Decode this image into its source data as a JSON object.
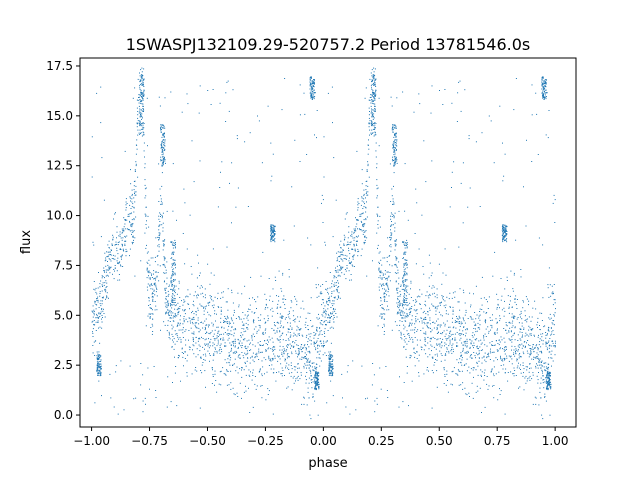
{
  "chart_data": {
    "type": "scatter",
    "title": "1SWASPJ132109.29-520757.2 Period 13781546.0s",
    "xlabel": "phase",
    "ylabel": "flux",
    "xlim": [
      -1.05,
      1.09
    ],
    "ylim": [
      -0.6,
      17.9
    ],
    "xticks": [
      -1.0,
      -0.75,
      -0.5,
      -0.25,
      0.0,
      0.25,
      0.5,
      0.75,
      1.0
    ],
    "xtick_labels": [
      "−1.00",
      "−0.75",
      "−0.50",
      "−0.25",
      "0.00",
      "0.25",
      "0.50",
      "0.75",
      "1.00"
    ],
    "yticks": [
      0.0,
      2.5,
      5.0,
      7.5,
      10.0,
      12.5,
      15.0,
      17.5
    ],
    "ytick_labels": [
      "0.0",
      "2.5",
      "5.0",
      "7.5",
      "10.0",
      "12.5",
      "15.0",
      "17.5"
    ],
    "grid": false,
    "marker_color": "#1f77b4",
    "series": [
      {
        "name": "",
        "profile": [
          [
            0.0,
            4.8
          ],
          [
            0.02,
            5.0
          ],
          [
            0.04,
            5.5
          ],
          [
            0.06,
            7.0
          ],
          [
            0.08,
            8.0
          ],
          [
            0.1,
            8.5
          ],
          [
            0.12,
            8.2
          ],
          [
            0.14,
            9.0
          ],
          [
            0.16,
            9.5
          ],
          [
            0.18,
            9.8
          ],
          [
            0.2,
            15.5
          ],
          [
            0.22,
            16.0
          ],
          [
            0.24,
            6.5
          ],
          [
            0.26,
            6.0
          ],
          [
            0.28,
            7.0
          ],
          [
            0.3,
            10.5
          ],
          [
            0.32,
            6.0
          ],
          [
            0.34,
            5.0
          ],
          [
            0.36,
            4.8
          ],
          [
            0.4,
            4.6
          ],
          [
            0.45,
            4.4
          ],
          [
            0.5,
            4.2
          ],
          [
            0.55,
            4.0
          ],
          [
            0.6,
            3.8
          ],
          [
            0.65,
            3.6
          ],
          [
            0.7,
            3.5
          ],
          [
            0.75,
            3.8
          ],
          [
            0.8,
            4.2
          ],
          [
            0.85,
            4.0
          ],
          [
            0.9,
            3.6
          ],
          [
            0.93,
            3.0
          ],
          [
            0.96,
            2.8
          ],
          [
            0.98,
            4.0
          ],
          [
            1.0,
            4.8
          ]
        ],
        "clusters": [
          {
            "phase": 0.215,
            "range": [
              14.0,
              17.5
            ]
          },
          {
            "phase": 0.305,
            "range": [
              12.5,
              14.6
            ]
          },
          {
            "phase": 0.35,
            "range": [
              5.5,
              9.0
            ]
          },
          {
            "phase": 0.78,
            "range": [
              8.7,
              9.6
            ]
          },
          {
            "phase": 0.95,
            "range": [
              15.8,
              17.0
            ]
          },
          {
            "phase": 0.03,
            "range": [
              2.0,
              3.2
            ]
          },
          {
            "phase": 0.97,
            "range": [
              1.3,
              2.2
            ]
          }
        ]
      }
    ]
  }
}
